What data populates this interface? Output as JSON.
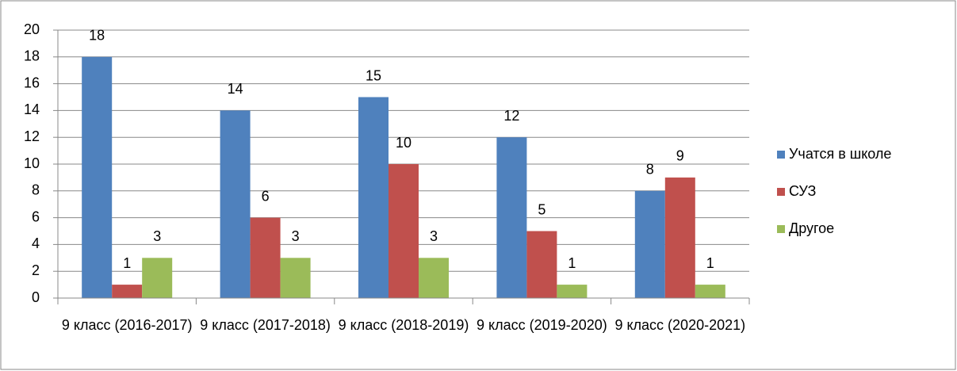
{
  "chart_data": {
    "type": "bar",
    "categories": [
      "9 класс (2016-2017)",
      "9 класс (2017-2018)",
      "9 класс (2018-2019)",
      "9 класс (2019-2020)",
      "9 класс (2020-2021)"
    ],
    "series": [
      {
        "name": "Учатся в школе",
        "color": "#4f81bd",
        "values": [
          18,
          14,
          15,
          12,
          8
        ]
      },
      {
        "name": "СУЗ",
        "color": "#c0504d",
        "values": [
          1,
          6,
          10,
          5,
          9
        ]
      },
      {
        "name": "Другое",
        "color": "#9bbb59",
        "values": [
          3,
          3,
          3,
          1,
          1
        ]
      }
    ],
    "ylim": [
      0,
      20
    ],
    "yticks": [
      0,
      2,
      4,
      6,
      8,
      10,
      12,
      14,
      16,
      18,
      20
    ],
    "grid": true,
    "legend": "right"
  }
}
